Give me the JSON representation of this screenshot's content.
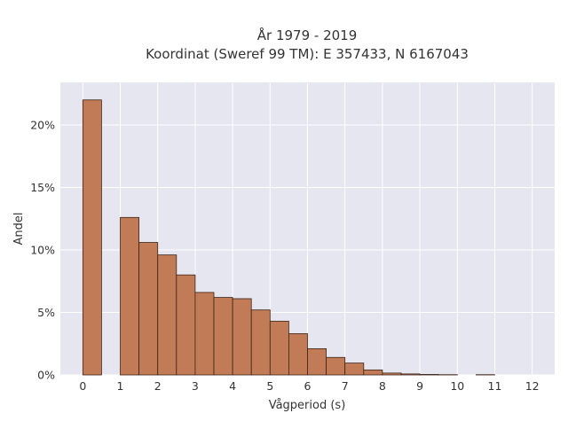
{
  "chart_data": {
    "type": "bar",
    "title_lines": [
      "År 1979 - 2019",
      "Koordinat (Sweref 99 TM): E 357433, N 6167043"
    ],
    "xlabel": "Vågperiod (s)",
    "ylabel": "Andel",
    "x_ticks": [
      0,
      1,
      2,
      3,
      4,
      5,
      6,
      7,
      8,
      9,
      10,
      11,
      12
    ],
    "y_ticks": [
      0,
      5,
      10,
      15,
      20
    ],
    "y_tick_labels": [
      "0%",
      "5%",
      "10%",
      "15%",
      "20%"
    ],
    "xlim": [
      -0.6,
      12.6
    ],
    "ylim": [
      0,
      23.4
    ],
    "bin_width": 0.5,
    "bins": [
      {
        "x": 0.0,
        "value": 22.0
      },
      {
        "x": 1.0,
        "value": 12.6
      },
      {
        "x": 1.5,
        "value": 10.6
      },
      {
        "x": 2.0,
        "value": 9.6
      },
      {
        "x": 2.5,
        "value": 8.0
      },
      {
        "x": 3.0,
        "value": 6.6
      },
      {
        "x": 3.5,
        "value": 6.2
      },
      {
        "x": 4.0,
        "value": 6.1
      },
      {
        "x": 4.5,
        "value": 5.2
      },
      {
        "x": 5.0,
        "value": 4.3
      },
      {
        "x": 5.5,
        "value": 3.3
      },
      {
        "x": 6.0,
        "value": 2.1
      },
      {
        "x": 6.5,
        "value": 1.4
      },
      {
        "x": 7.0,
        "value": 0.95
      },
      {
        "x": 7.5,
        "value": 0.4
      },
      {
        "x": 8.0,
        "value": 0.15
      },
      {
        "x": 8.5,
        "value": 0.08
      },
      {
        "x": 9.0,
        "value": 0.04
      },
      {
        "x": 9.5,
        "value": 0.02
      },
      {
        "x": 10.5,
        "value": 0.02
      }
    ],
    "grid": true,
    "colors": {
      "bar_fill": "#c17b56",
      "bar_edge": "#3d2417",
      "plot_background": "#e5e6f0",
      "grid": "#ffffff"
    }
  }
}
